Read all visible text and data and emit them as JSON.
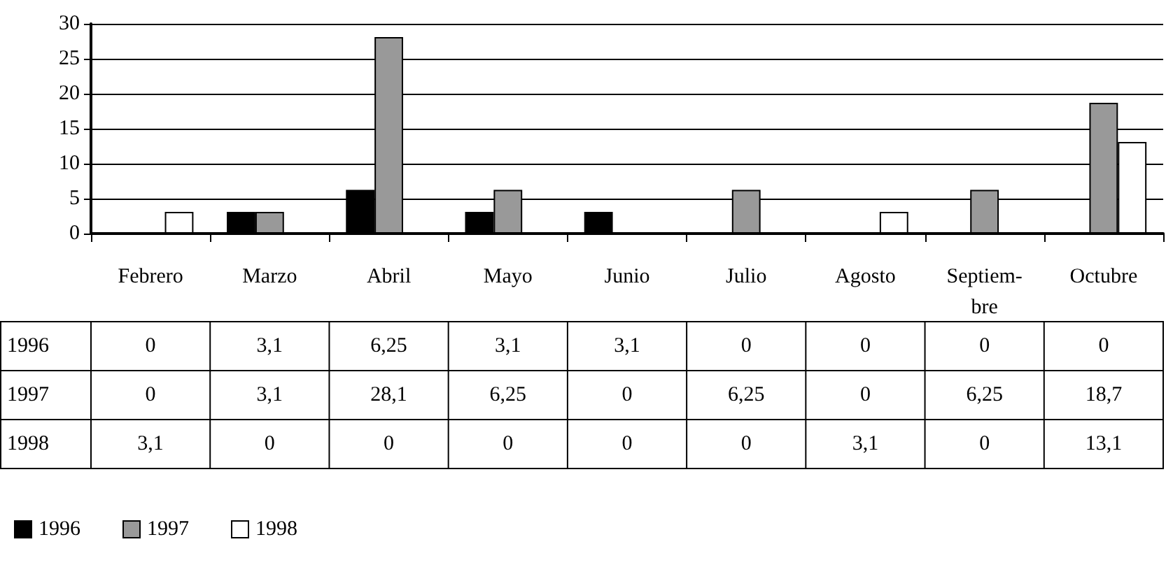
{
  "chart_data": {
    "type": "bar",
    "categories": [
      "Febrero",
      "Marzo",
      "Abril",
      "Mayo",
      "Junio",
      "Julio",
      "Agosto",
      "Septiem-\nbre",
      "Octubre"
    ],
    "series": [
      {
        "name": "1996",
        "color": "#000000",
        "values": [
          0,
          3.1,
          6.25,
          3.1,
          3.1,
          0,
          0,
          0,
          0
        ],
        "value_labels": [
          "0",
          "3,1",
          "6,25",
          "3,1",
          "3,1",
          "0",
          "0",
          "0",
          "0"
        ]
      },
      {
        "name": "1997",
        "color": "#999999",
        "values": [
          0,
          3.1,
          28.1,
          6.25,
          0,
          6.25,
          0,
          6.25,
          18.7
        ],
        "value_labels": [
          "0",
          "3,1",
          "28,1",
          "6,25",
          "0",
          "6,25",
          "0",
          "6,25",
          "18,7"
        ]
      },
      {
        "name": "1998",
        "color": "#ffffff",
        "values": [
          3.1,
          0,
          0,
          0,
          0,
          0,
          3.1,
          0,
          13.1
        ],
        "value_labels": [
          "3,1",
          "0",
          "0",
          "0",
          "0",
          "0",
          "3,1",
          "0",
          "13,1"
        ]
      }
    ],
    "ylim": [
      0,
      30
    ],
    "yticks": [
      0,
      5,
      10,
      15,
      20,
      25,
      30
    ],
    "grid": "y",
    "legend": "bottom left"
  }
}
